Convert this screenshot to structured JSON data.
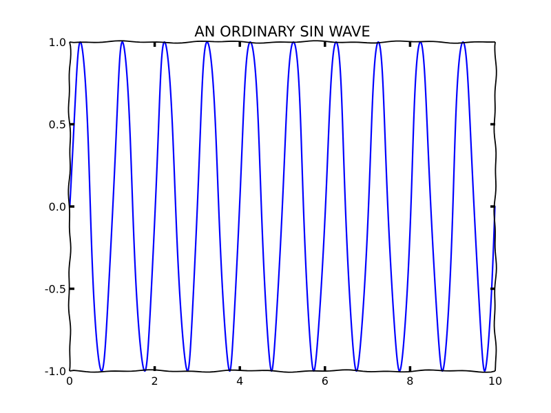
{
  "chart_data": {
    "type": "line",
    "title": "AN ORDINARY SIN WAVE",
    "xlabel": "",
    "ylabel": "",
    "xlim": [
      0,
      10
    ],
    "ylim": [
      -1.0,
      1.0
    ],
    "x_ticks": [
      0,
      2,
      4,
      6,
      8,
      10
    ],
    "x_tick_labels": [
      "0",
      "2",
      "4",
      "6",
      "8",
      "10"
    ],
    "y_ticks": [
      1.0,
      0.5,
      0.0,
      -0.5,
      -1.0
    ],
    "y_tick_labels": [
      "1.0",
      "0.5",
      "0.0",
      "-0.5",
      "-1.0"
    ],
    "grid": false,
    "style": "xkcd",
    "series": [
      {
        "function": "sin(2*pi*x)",
        "x_range": [
          0,
          10
        ],
        "color": "#0000ff"
      }
    ]
  }
}
